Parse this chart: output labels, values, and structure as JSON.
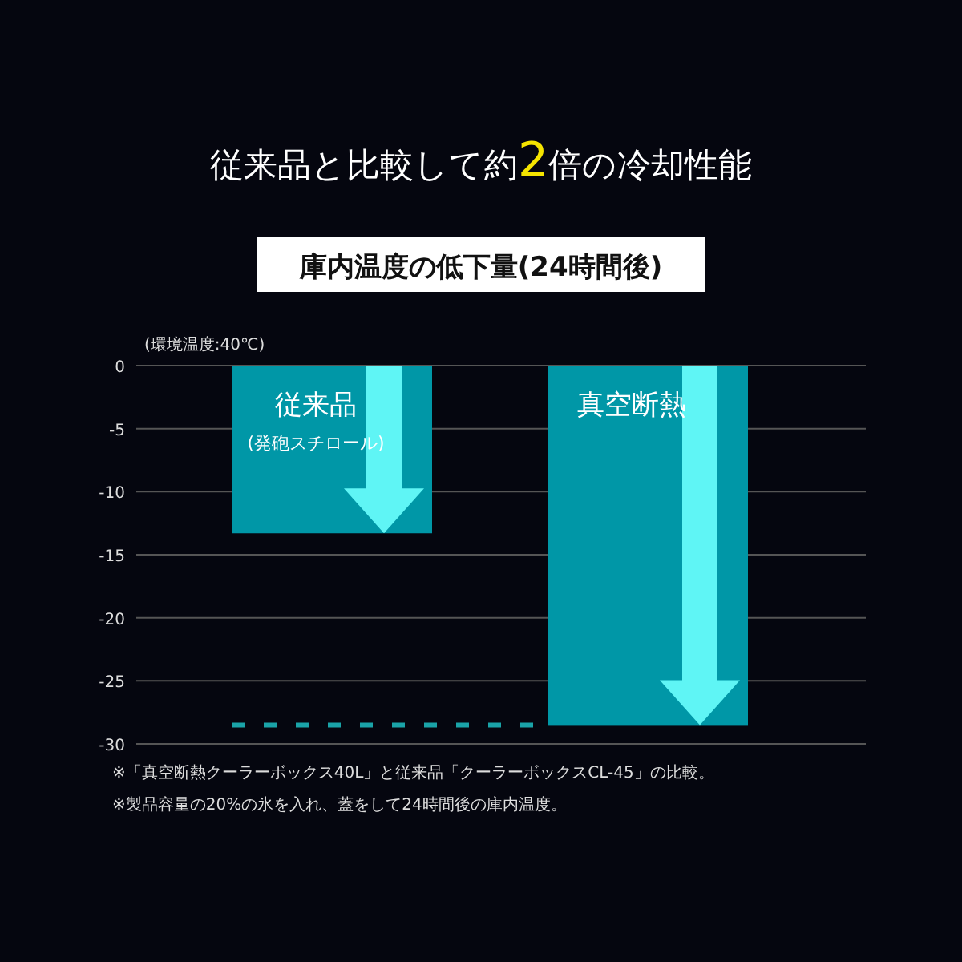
{
  "chart_data": {
    "type": "bar",
    "title": "従来品と比較して約2倍の冷却性能",
    "subtitle": "庫内温度の低下量(24時間後)",
    "ylabel": "(環境温度:40℃)",
    "categories": [
      "従来品\n(発砲スチロール)",
      "真空断熱"
    ],
    "values": [
      -13.3,
      -28.5
    ],
    "color": "#0097a7",
    "ylim": [
      -30,
      0
    ],
    "yticks": [
      0,
      -5,
      -10,
      -15,
      -20,
      -25,
      -30
    ],
    "grid": "y",
    "ref_lines": [
      {
        "axis": "y",
        "value": -28.5,
        "color": "#1aa3a8",
        "line_style": "dashed"
      }
    ],
    "annotations": [
      "※「真空断熱クーラーボックス40L」と従来品「クーラーボックスCL-45」の比較。",
      "※製品容量の20%の氷を入れ、蓋をして24時間後の庫内温度。"
    ]
  }
}
